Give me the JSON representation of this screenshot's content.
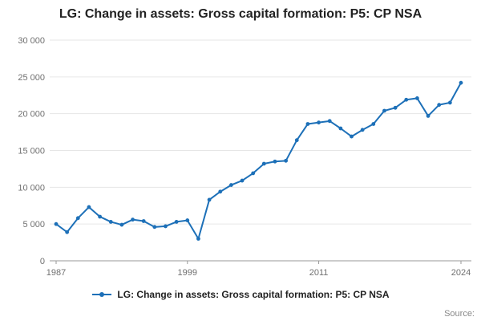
{
  "header": {
    "title": "LG: Change in assets: Gross capital formation: P5: CP NSA"
  },
  "legend": {
    "label": "LG: Change in assets: Gross capital formation: P5: CP NSA"
  },
  "source": {
    "label": "Source:"
  },
  "colors": {
    "line": "#1d70b8",
    "grid": "#e6e6e6",
    "axis": "#999999",
    "tick_text": "#707070",
    "title_text": "#222222"
  },
  "chart_data": {
    "type": "line",
    "title": "LG: Change in assets: Gross capital formation: P5: CP NSA",
    "xlabel": "",
    "ylabel": "",
    "x": [
      1987,
      1988,
      1989,
      1990,
      1991,
      1992,
      1993,
      1994,
      1995,
      1996,
      1997,
      1998,
      1999,
      2000,
      2001,
      2002,
      2003,
      2004,
      2005,
      2006,
      2007,
      2008,
      2009,
      2010,
      2011,
      2012,
      2013,
      2014,
      2015,
      2016,
      2017,
      2018,
      2019,
      2020,
      2021,
      2022,
      2023,
      2024
    ],
    "series": [
      {
        "name": "LG: Change in assets: Gross capital formation: P5: CP NSA",
        "color": "#1d70b8",
        "values": [
          5000,
          3900,
          5800,
          7300,
          6000,
          5300,
          4900,
          5600,
          5400,
          4600,
          4700,
          5300,
          5500,
          3000,
          8300,
          9400,
          10300,
          10900,
          11900,
          13200,
          13500,
          13600,
          16400,
          18600,
          18800,
          19000,
          18000,
          16900,
          17800,
          18600,
          20400,
          20800,
          21900,
          22100,
          19700,
          21200,
          21500,
          24200
        ]
      }
    ],
    "ylim": [
      0,
      30000
    ],
    "yticks": [
      0,
      5000,
      10000,
      15000,
      20000,
      25000,
      30000
    ],
    "ytick_labels": [
      "0",
      "5 000",
      "10 000",
      "15 000",
      "20 000",
      "25 000",
      "30 000"
    ],
    "xticks": [
      1987,
      1999,
      2011,
      2024
    ],
    "xtick_labels": [
      "1987",
      "1999",
      "2011",
      "2024"
    ],
    "grid": "horizontal-only",
    "legend_position": "bottom",
    "marker": "circle"
  }
}
